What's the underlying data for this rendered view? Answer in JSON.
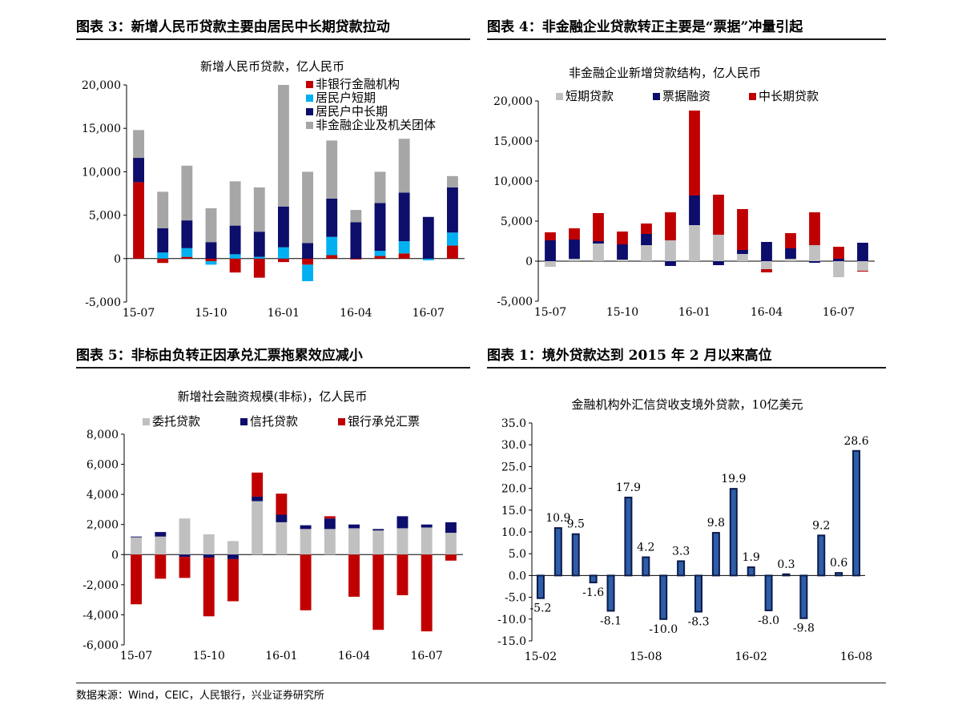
{
  "headers": {
    "left_top": "图表 3：新增人民币贷款主要由居民中长期贷款拉动",
    "right_top": "图表 4：非金融企业贷款转正主要是“票据”冲量引起",
    "left_bottom": "图表 5：非标由负转正因承兑汇票拖累效应减小",
    "right_bottom": "图表 1：境外贷款达到 2015 年 2 月以来高位"
  },
  "source": "数据来源：Wind，CEIC，人民银行，兴业证券研究所",
  "colors": {
    "red": "#c00000",
    "cyan": "#00b0f0",
    "navy": "#0d0d6b",
    "gray": "#a6a6a6",
    "lightgray": "#c0c0c0",
    "blue": "#2e5ea8"
  },
  "chart_data": [
    {
      "id": "chart1",
      "type": "bar",
      "stacked": true,
      "title": "新增人民币贷款，亿人民币",
      "categories": [
        "15-07",
        "15-08",
        "15-09",
        "15-10",
        "15-11",
        "15-12",
        "16-01",
        "16-02",
        "16-03",
        "16-04",
        "16-05",
        "16-06",
        "16-07",
        "16-08"
      ],
      "x_tick_labels": [
        "15-07",
        "15-10",
        "16-01",
        "16-04",
        "16-07"
      ],
      "x_tick_index": [
        0,
        3,
        6,
        9,
        12
      ],
      "ylim": [
        -5000,
        20000
      ],
      "yticks": [
        -5000,
        0,
        5000,
        10000,
        15000,
        20000
      ],
      "ytick_labels": [
        "-5,000",
        "0",
        "5,000",
        "10,000",
        "15,000",
        "20,000"
      ],
      "legend_position": "top-right",
      "series": [
        {
          "name": "非银行金融机构",
          "color": "red",
          "values": [
            8800,
            -500,
            200,
            -300,
            -1600,
            -2200,
            -400,
            -700,
            400,
            -100,
            300,
            600,
            0,
            1500
          ]
        },
        {
          "name": "居民户短期",
          "color": "cyan",
          "values": [
            0,
            700,
            1000,
            -400,
            500,
            200,
            1300,
            -1900,
            2100,
            0,
            600,
            1400,
            -200,
            1500
          ]
        },
        {
          "name": "居民户中长期",
          "color": "navy",
          "values": [
            2800,
            2800,
            3200,
            1900,
            3300,
            2900,
            4700,
            1800,
            4400,
            4200,
            5500,
            5600,
            4800,
            5200
          ]
        },
        {
          "name": "非金融企业及机关团体",
          "color": "gray",
          "values": [
            3200,
            4200,
            6300,
            3900,
            5100,
            5100,
            14000,
            8200,
            6700,
            1400,
            3600,
            6200,
            0,
            1300
          ]
        }
      ]
    },
    {
      "id": "chart2",
      "type": "bar",
      "stacked": true,
      "title": "非金融企业新增贷款结构，亿人民币",
      "categories": [
        "15-07",
        "15-08",
        "15-09",
        "15-10",
        "15-11",
        "15-12",
        "16-01",
        "16-02",
        "16-03",
        "16-04",
        "16-05",
        "16-06",
        "16-07",
        "16-08"
      ],
      "x_tick_labels": [
        "15-07",
        "15-10",
        "16-01",
        "16-04",
        "16-07"
      ],
      "x_tick_index": [
        0,
        3,
        6,
        9,
        12
      ],
      "ylim": [
        -5000,
        20000
      ],
      "yticks": [
        -5000,
        0,
        5000,
        10000,
        15000,
        20000
      ],
      "ytick_labels": [
        "-5,000",
        "0",
        "5,000",
        "10,000",
        "15,000",
        "20,000"
      ],
      "legend_position": "top",
      "series": [
        {
          "name": "短期贷款",
          "color": "lightgray",
          "values": [
            -700,
            300,
            2200,
            200,
            2000,
            2600,
            4500,
            3300,
            900,
            -1000,
            300,
            2000,
            -2000,
            -1200
          ]
        },
        {
          "name": "票据融资",
          "color": "navy",
          "values": [
            2600,
            2400,
            300,
            1900,
            1400,
            -600,
            3700,
            -500,
            500,
            2400,
            1300,
            -200,
            300,
            2300
          ]
        },
        {
          "name": "中长期贷款",
          "color": "red",
          "values": [
            1000,
            1400,
            3500,
            1600,
            1300,
            3500,
            10600,
            5000,
            5100,
            -400,
            1900,
            4100,
            1500,
            -100
          ]
        }
      ]
    },
    {
      "id": "chart3",
      "type": "bar",
      "stacked": true,
      "title": "新增社会融资规模(非标)，亿人民币",
      "categories": [
        "15-07",
        "15-08",
        "15-09",
        "15-10",
        "15-11",
        "15-12",
        "16-01",
        "16-02",
        "16-03",
        "16-04",
        "16-05",
        "16-06",
        "16-07",
        "16-08"
      ],
      "x_tick_labels": [
        "15-07",
        "15-10",
        "16-01",
        "16-04",
        "16-07"
      ],
      "x_tick_index": [
        0,
        3,
        6,
        9,
        12
      ],
      "ylim": [
        -6000,
        8000
      ],
      "yticks": [
        -6000,
        -4000,
        -2000,
        0,
        2000,
        4000,
        6000,
        8000
      ],
      "ytick_labels": [
        "-6,000",
        "-4,000",
        "-2,000",
        "0",
        "2,000",
        "4,000",
        "6,000",
        "8,000"
      ],
      "legend_position": "top",
      "series": [
        {
          "name": "委托贷款",
          "color": "lightgray",
          "values": [
            1150,
            1200,
            2400,
            1350,
            900,
            3550,
            2150,
            1700,
            1700,
            1750,
            1600,
            1750,
            1800,
            1450
          ]
        },
        {
          "name": "信托贷款",
          "color": "navy",
          "values": [
            50,
            300,
            -150,
            -200,
            -300,
            300,
            500,
            250,
            700,
            250,
            100,
            800,
            200,
            700
          ]
        },
        {
          "name": "银行承兑汇票",
          "color": "red",
          "values": [
            -3300,
            -1600,
            -1400,
            -3900,
            -2800,
            1600,
            1400,
            -3700,
            150,
            -2800,
            -5000,
            -2700,
            -5100,
            -400
          ]
        }
      ]
    },
    {
      "id": "chart4",
      "type": "bar",
      "title": "金融机构外汇信贷收支境外贷款，10亿美元",
      "categories": [
        "15-02",
        "15-03",
        "15-04",
        "15-05",
        "15-06",
        "15-07",
        "15-08",
        "15-09",
        "15-10",
        "15-11",
        "15-12",
        "16-01",
        "16-02",
        "16-03",
        "16-04",
        "16-05",
        "16-06",
        "16-07",
        "16-08"
      ],
      "x_tick_labels": [
        "15-02",
        "15-08",
        "16-02",
        "16-08"
      ],
      "x_tick_index": [
        0,
        6,
        12,
        18
      ],
      "ylim": [
        -15,
        35
      ],
      "yticks": [
        -15,
        -10,
        -5,
        0,
        5,
        10,
        15,
        20,
        25,
        30,
        35
      ],
      "ytick_labels": [
        "-15.0",
        "-10.0",
        "-5.0",
        "0.0",
        "5.0",
        "10.0",
        "15.0",
        "20.0",
        "25.0",
        "30.0",
        "35.0"
      ],
      "values": [
        -5.2,
        10.9,
        9.5,
        -1.6,
        -8.1,
        17.9,
        4.2,
        -10.0,
        3.3,
        -8.3,
        9.8,
        19.9,
        1.9,
        -8.0,
        0.3,
        -9.8,
        9.2,
        0.6,
        28.6
      ],
      "data_labels": [
        "-5.2",
        "10.9",
        "9.5",
        "-1.6",
        "-8.1",
        "17.9",
        "4.2",
        "-10.0",
        "3.3",
        "-8.3",
        "9.8",
        "19.9",
        "1.9",
        "-8.0",
        "0.3",
        "-9.8",
        "9.2",
        "0.6",
        "28.6"
      ],
      "color": "blue"
    }
  ]
}
